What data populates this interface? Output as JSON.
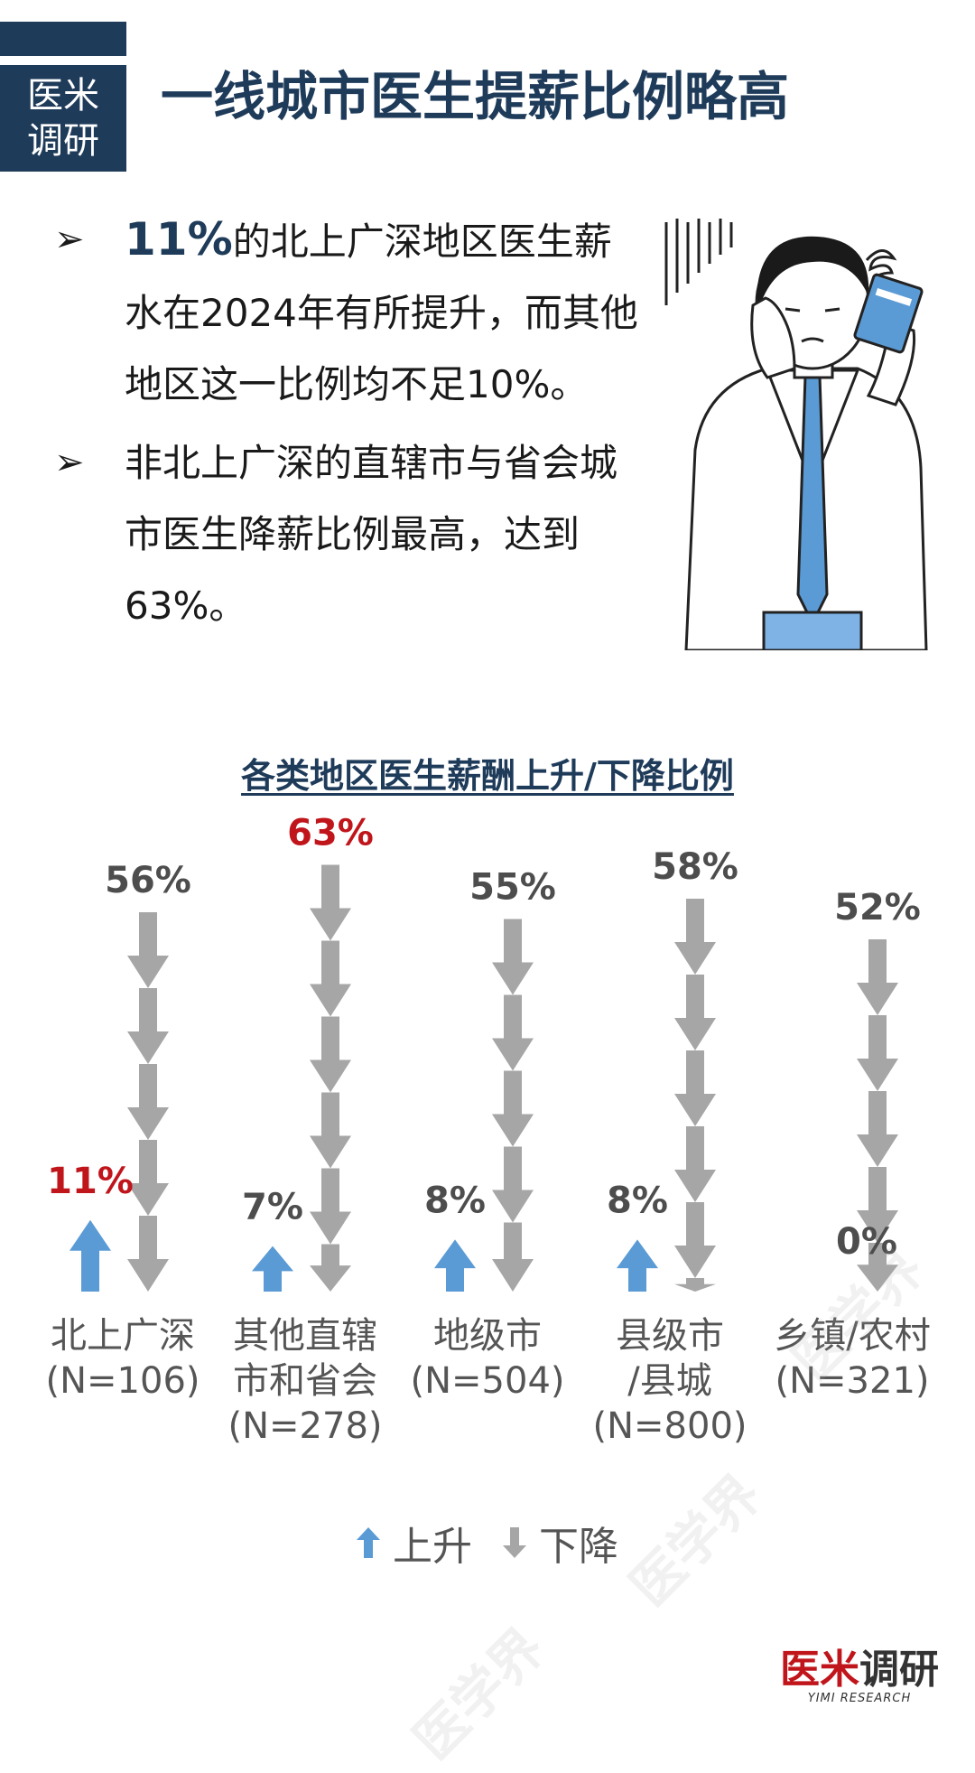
{
  "header": {
    "badge_line1": "医米",
    "badge_line2": "调研",
    "title": "一线城市医生提薪比例略高"
  },
  "bullets": [
    {
      "highlight": "11%",
      "text": "的北上广深地区医生薪水在2024年有所提升，而其他地区这一比例均不足10%。"
    },
    {
      "highlight": "",
      "text": "非北上广深的直辖市与省会城市医生降薪比例最高，达到63%。"
    }
  ],
  "chart_title": "各类地区医生薪酬上升/下降比例",
  "chart_data": {
    "type": "bar",
    "categories": [
      [
        "北上广深",
        "(N=106)"
      ],
      [
        "其他直辖",
        "市和省会",
        "(N=278)"
      ],
      [
        "地级市",
        "(N=504)"
      ],
      [
        "县级市",
        "/县城",
        "(N=800)"
      ],
      [
        "乡镇/农村",
        "(N=321)"
      ]
    ],
    "series": [
      {
        "name": "上升",
        "values": [
          11,
          7,
          8,
          8,
          0
        ],
        "labels": [
          "11%",
          "7%",
          "8%",
          "8%",
          "0%"
        ],
        "color": "#5b9bd5"
      },
      {
        "name": "下降",
        "values": [
          56,
          63,
          55,
          58,
          52
        ],
        "labels": [
          "56%",
          "63%",
          "55%",
          "58%",
          "52%"
        ],
        "color": "#a6a6a6"
      }
    ],
    "highlight_color": "#c0151b",
    "label_color": "#4d4d4d",
    "ylim": [
      0,
      70
    ]
  },
  "legend": {
    "up": "上升",
    "down": "下降"
  },
  "brand": {
    "name_red": "医米",
    "name_dark": "调研",
    "sub": "YIMI RESEARCH"
  },
  "watermarks": [
    "医学界",
    "医学界",
    "医学界"
  ]
}
